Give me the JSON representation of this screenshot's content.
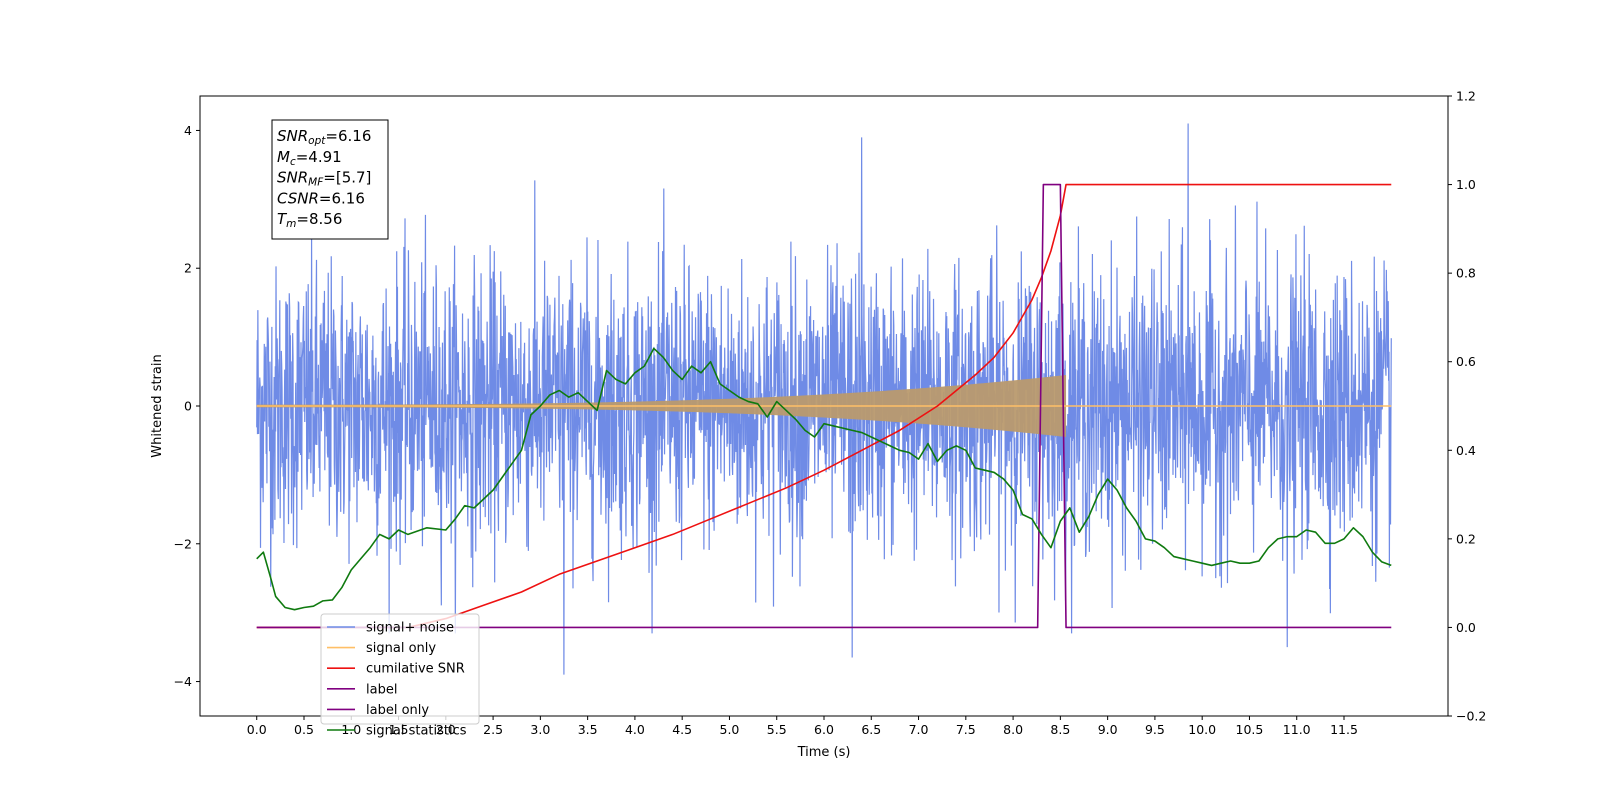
{
  "chart_data": {
    "type": "line",
    "title": "",
    "xlabel": "Time (s)",
    "ylabel": "Whitened strain",
    "xlim": [
      -0.6,
      12.6
    ],
    "ylim": [
      -4.5,
      4.5
    ],
    "y2lim": [
      -0.2,
      1.2
    ],
    "xticks": [
      0.0,
      0.5,
      1.0,
      1.5,
      2.0,
      2.5,
      3.0,
      3.5,
      4.0,
      4.5,
      5.0,
      5.5,
      6.0,
      6.5,
      7.0,
      7.5,
      8.0,
      8.5,
      9.0,
      9.5,
      10.0,
      10.5,
      11.0,
      11.5
    ],
    "xtick_labels": [
      "0.0",
      "0.5",
      "1.0",
      "1.5",
      "2.0",
      "2.5",
      "3.0",
      "3.5",
      "4.0",
      "4.5",
      "5.0",
      "5.5",
      "6.0",
      "6.5",
      "7.0",
      "7.5",
      "8.0",
      "8.5",
      "9.0",
      "9.5",
      "10.0",
      "10.5",
      "11.0",
      "11.5"
    ],
    "yticks": [
      -4,
      -2,
      0,
      2,
      4
    ],
    "ytick_labels": [
      "−4",
      "−2",
      "0",
      "2",
      "4"
    ],
    "y2ticks": [
      -0.2,
      0.0,
      0.2,
      0.4,
      0.6,
      0.8,
      1.0,
      1.2
    ],
    "y2tick_labels": [
      "−0.2",
      "0.0",
      "0.2",
      "0.4",
      "0.6",
      "0.8",
      "1.0",
      "1.2"
    ],
    "grid": false,
    "legend_placement": "lower-left",
    "annotation": [
      {
        "sym": "SNR",
        "sub": "opt",
        "val": "=6.16"
      },
      {
        "sym": "M",
        "sub": "c",
        "val": "=4.91"
      },
      {
        "sym": "SNR",
        "sub": "MF",
        "val": "=[5.7]"
      },
      {
        "sym": "CSNR",
        "sub": "",
        "val": "=6.16"
      },
      {
        "sym": "T",
        "sub": "m",
        "val": "=8.56"
      }
    ],
    "series": [
      {
        "name": "signal+ noise",
        "axis": "left",
        "color": "#6f8be6",
        "style": "noise",
        "t_start": 0.0,
        "t_end": 12.0,
        "std": 1.0,
        "spikes": [
          [
            6.4,
            3.9
          ],
          [
            9.85,
            4.1
          ],
          [
            3.25,
            -3.9
          ],
          [
            6.3,
            -3.65
          ],
          [
            10.9,
            -3.5
          ]
        ]
      },
      {
        "name": "signal only",
        "axis": "left",
        "color": "#ffbf66",
        "style": "chirp",
        "t_start": 0.0,
        "t_end": 8.56,
        "amp_start": 0.02,
        "amp_end": 0.45
      },
      {
        "name": "cumilative SNR",
        "axis": "right",
        "color": "#ee1111",
        "x": [
          0.0,
          1.6,
          2.0,
          2.4,
          2.8,
          3.2,
          3.6,
          4.0,
          4.4,
          4.8,
          5.2,
          5.6,
          6.0,
          6.4,
          6.8,
          7.2,
          7.6,
          7.8,
          8.0,
          8.2,
          8.3,
          8.4,
          8.5,
          8.56,
          9.0,
          10.0,
          11.0,
          12.0
        ],
        "y": [
          0.0,
          0.0,
          0.02,
          0.05,
          0.08,
          0.12,
          0.15,
          0.18,
          0.21,
          0.245,
          0.28,
          0.315,
          0.355,
          0.4,
          0.445,
          0.5,
          0.57,
          0.61,
          0.665,
          0.74,
          0.79,
          0.85,
          0.93,
          1.0,
          1.0,
          1.0,
          1.0,
          1.0
        ]
      },
      {
        "name": "label",
        "axis": "right",
        "color": "#800080",
        "x": [
          0.0,
          8.26,
          8.32,
          8.5,
          8.56,
          12.0
        ],
        "y": [
          0.0,
          0.0,
          1.0,
          1.0,
          0.0,
          0.0
        ]
      },
      {
        "name": "label only",
        "axis": "right",
        "color": "#800080",
        "hidden": true,
        "x": [],
        "y": []
      },
      {
        "name": "signal statistics",
        "axis": "right",
        "color": "#0f7a0f",
        "x": [
          0.0,
          0.07,
          0.15,
          0.2,
          0.3,
          0.4,
          0.5,
          0.6,
          0.7,
          0.8,
          0.9,
          1.0,
          1.1,
          1.2,
          1.3,
          1.4,
          1.5,
          1.6,
          1.8,
          2.0,
          2.1,
          2.2,
          2.3,
          2.4,
          2.5,
          2.6,
          2.7,
          2.8,
          2.9,
          3.0,
          3.1,
          3.2,
          3.3,
          3.4,
          3.5,
          3.6,
          3.7,
          3.8,
          3.9,
          4.0,
          4.1,
          4.2,
          4.3,
          4.4,
          4.5,
          4.6,
          4.7,
          4.8,
          4.9,
          5.0,
          5.1,
          5.2,
          5.3,
          5.4,
          5.5,
          5.6,
          5.7,
          5.8,
          5.9,
          6.0,
          6.1,
          6.2,
          6.3,
          6.4,
          6.5,
          6.6,
          6.7,
          6.8,
          6.9,
          7.0,
          7.1,
          7.2,
          7.3,
          7.4,
          7.5,
          7.6,
          7.7,
          7.8,
          7.9,
          8.0,
          8.1,
          8.2,
          8.3,
          8.4,
          8.5,
          8.6,
          8.7,
          8.8,
          8.9,
          9.0,
          9.1,
          9.2,
          9.3,
          9.4,
          9.5,
          9.6,
          9.7,
          9.8,
          9.9,
          10.0,
          10.1,
          10.2,
          10.3,
          10.4,
          10.5,
          10.6,
          10.7,
          10.8,
          10.9,
          11.0,
          11.1,
          11.2,
          11.3,
          11.4,
          11.5,
          11.6,
          11.7,
          11.8,
          11.9,
          12.0
        ],
        "y": [
          0.155,
          0.17,
          0.11,
          0.07,
          0.045,
          0.04,
          0.045,
          0.048,
          0.06,
          0.062,
          0.09,
          0.13,
          0.155,
          0.18,
          0.21,
          0.2,
          0.22,
          0.21,
          0.225,
          0.22,
          0.245,
          0.275,
          0.27,
          0.29,
          0.31,
          0.34,
          0.37,
          0.4,
          0.48,
          0.5,
          0.525,
          0.535,
          0.52,
          0.53,
          0.51,
          0.49,
          0.58,
          0.56,
          0.55,
          0.575,
          0.59,
          0.63,
          0.61,
          0.58,
          0.56,
          0.59,
          0.575,
          0.6,
          0.55,
          0.535,
          0.52,
          0.51,
          0.505,
          0.475,
          0.51,
          0.49,
          0.47,
          0.445,
          0.43,
          0.46,
          0.455,
          0.45,
          0.445,
          0.44,
          0.43,
          0.42,
          0.41,
          0.4,
          0.395,
          0.38,
          0.415,
          0.375,
          0.4,
          0.41,
          0.4,
          0.36,
          0.355,
          0.35,
          0.335,
          0.31,
          0.255,
          0.245,
          0.21,
          0.18,
          0.24,
          0.27,
          0.215,
          0.25,
          0.3,
          0.335,
          0.31,
          0.27,
          0.24,
          0.2,
          0.195,
          0.18,
          0.16,
          0.155,
          0.15,
          0.145,
          0.14,
          0.145,
          0.15,
          0.145,
          0.145,
          0.15,
          0.18,
          0.2,
          0.205,
          0.205,
          0.22,
          0.215,
          0.19,
          0.19,
          0.2,
          0.225,
          0.205,
          0.17,
          0.148,
          0.14
        ]
      }
    ]
  }
}
